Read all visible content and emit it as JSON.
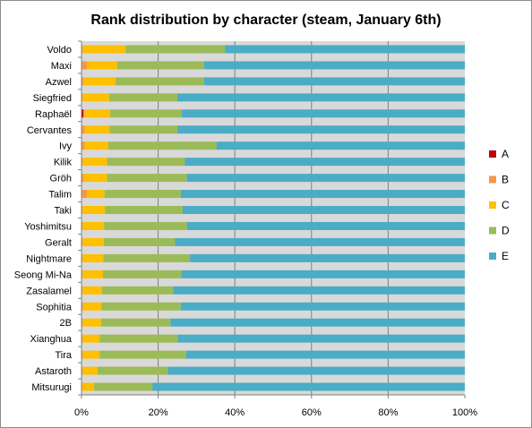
{
  "chart_data": {
    "type": "bar",
    "orientation": "horizontal",
    "stacked": "percent",
    "title": "Rank distribution by character (steam, January 6th)",
    "xlabel": "",
    "ylabel": "",
    "xlim": [
      0,
      100
    ],
    "x_ticks": [
      "0%",
      "20%",
      "40%",
      "60%",
      "80%",
      "100%"
    ],
    "grid": "vertical",
    "legend_position": "right",
    "categories": [
      "Voldo",
      "Maxi",
      "Azwel",
      "Siegfried",
      "Raphaël",
      "Cervantes",
      "Ivy",
      "Kilik",
      "Gröh",
      "Talim",
      "Taki",
      "Yoshimitsu",
      "Geralt",
      "Nightmare",
      "Seong Mi-Na",
      "Zasalamel",
      "Sophitia",
      "2B",
      "Xianghua",
      "Tira",
      "Astaroth",
      "Mitsurugi"
    ],
    "series": [
      {
        "name": "A",
        "color": "#c00000",
        "values": [
          0,
          0,
          0,
          0,
          0.5,
          0,
          0,
          0,
          0,
          0,
          0,
          0,
          0,
          0,
          0,
          0,
          0,
          0,
          0,
          0,
          0,
          0
        ]
      },
      {
        "name": "B",
        "color": "#f79646",
        "values": [
          0.3,
          1.4,
          0.5,
          0.3,
          0.3,
          0.8,
          0.8,
          0.3,
          0.6,
          1.4,
          0.3,
          0.3,
          0.3,
          0.3,
          0.3,
          0.3,
          0.4,
          0.3,
          0.3,
          0.3,
          0.3,
          0.2
        ]
      },
      {
        "name": "C",
        "color": "#ffc000",
        "values": [
          11.2,
          7.9,
          8.4,
          6.9,
          6.7,
          6.5,
          6.2,
          6.4,
          6.1,
          4.6,
          5.8,
          5.6,
          5.5,
          5.4,
          5.3,
          5.0,
          4.8,
          4.8,
          4.4,
          4.4,
          3.9,
          3.1
        ]
      },
      {
        "name": "D",
        "color": "#9bbb59",
        "values": [
          26.0,
          22.7,
          23.1,
          17.8,
          18.6,
          17.7,
          28.2,
          20.3,
          20.8,
          19.9,
          20.3,
          21.6,
          18.6,
          22.6,
          20.4,
          18.6,
          20.7,
          18.1,
          20.4,
          22.6,
          18.3,
          15.2
        ]
      },
      {
        "name": "E",
        "color": "#4bacc6",
        "values": [
          62.5,
          68.0,
          68.0,
          75.0,
          73.9,
          75.0,
          64.8,
          73.0,
          72.5,
          74.1,
          73.6,
          72.5,
          75.6,
          71.7,
          74.0,
          76.1,
          74.1,
          76.8,
          74.9,
          72.7,
          77.5,
          81.5
        ]
      }
    ]
  }
}
